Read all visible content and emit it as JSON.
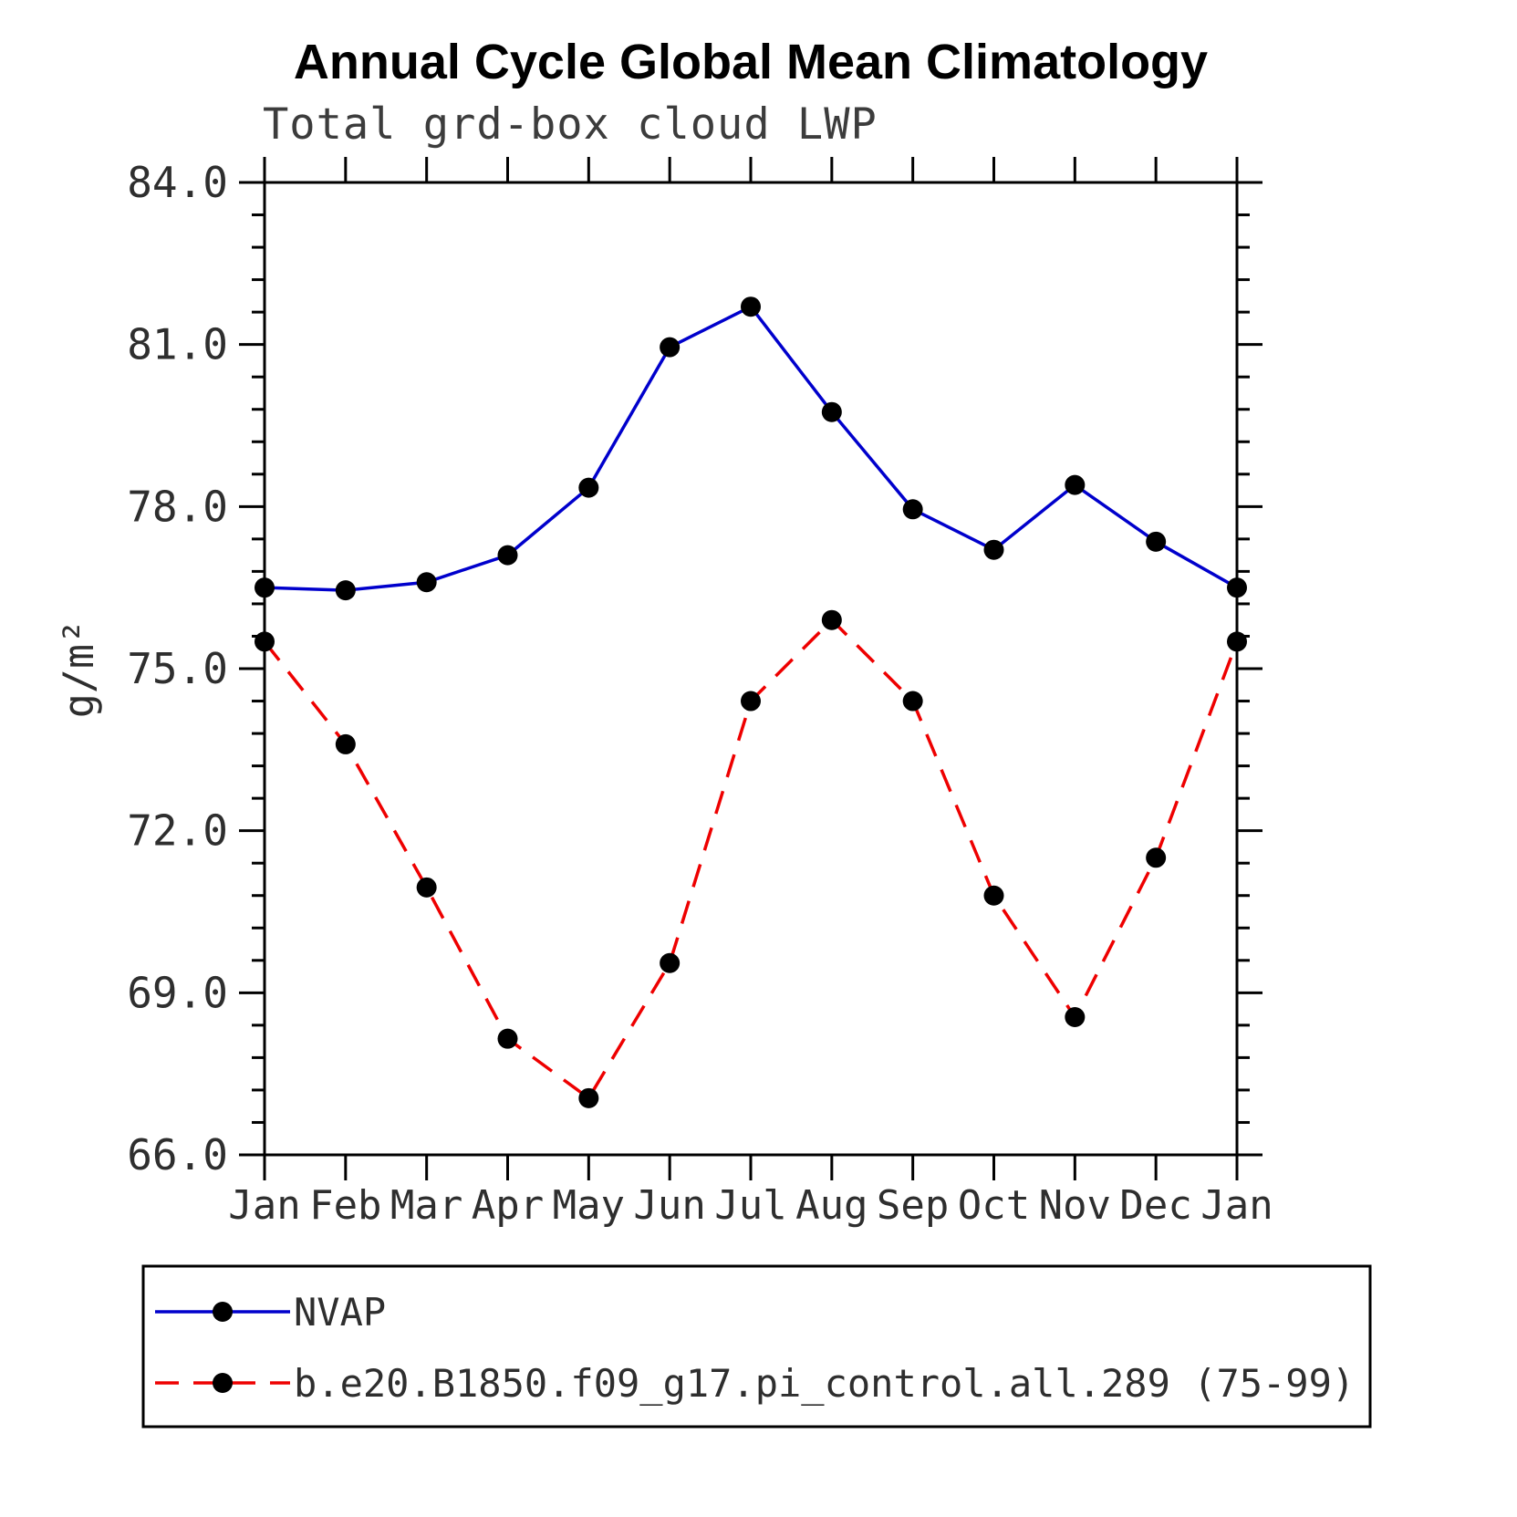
{
  "chart_data": {
    "type": "line",
    "title": "Annual Cycle Global Mean Climatology",
    "subtitle": "Total grd-box cloud LWP",
    "ylabel": "g/m²",
    "xlabel": "",
    "ylim": [
      66.0,
      84.0
    ],
    "ytick_step": 3.0,
    "ytick_minor_step": 0.6,
    "ytick_labels": [
      "66.0",
      "69.0",
      "72.0",
      "75.0",
      "78.0",
      "81.0",
      "84.0"
    ],
    "categories": [
      "Jan",
      "Feb",
      "Mar",
      "Apr",
      "May",
      "Jun",
      "Jul",
      "Aug",
      "Sep",
      "Oct",
      "Nov",
      "Dec",
      "Jan"
    ],
    "grid": false,
    "legend_position": "bottom",
    "series": [
      {
        "name": "NVAP",
        "color": "#0000cc",
        "style": "solid",
        "marker": "filled-circle",
        "marker_color": "#000000",
        "values": [
          76.5,
          76.45,
          76.6,
          77.1,
          78.35,
          80.95,
          81.7,
          79.75,
          77.95,
          77.2,
          78.4,
          77.35,
          76.5
        ]
      },
      {
        "name": "b.e20.B1850.f09_g17.pi_control.all.289 (75-99)",
        "color": "#ee0000",
        "style": "dashed",
        "marker": "filled-circle",
        "marker_color": "#000000",
        "values": [
          75.5,
          73.6,
          70.95,
          68.15,
          67.05,
          69.55,
          74.4,
          75.9,
          74.4,
          70.8,
          68.55,
          71.5,
          75.5
        ]
      }
    ]
  }
}
